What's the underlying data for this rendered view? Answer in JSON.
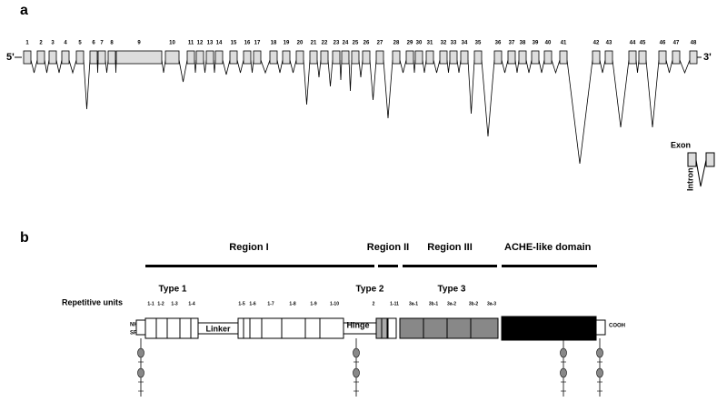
{
  "panel_a": {
    "label": "a",
    "five_prime": "5'",
    "three_prime": "3'",
    "exons": [
      "1",
      "2",
      "3",
      "4",
      "5",
      "6",
      "7",
      "8",
      "9",
      "10",
      "11",
      "12",
      "13",
      "14",
      "15",
      "16",
      "17",
      "18",
      "19",
      "20",
      "21",
      "22",
      "23",
      "24",
      "25",
      "26",
      "27",
      "28",
      "29",
      "30",
      "31",
      "32",
      "33",
      "34",
      "35",
      "36",
      "37",
      "38",
      "39",
      "40",
      "41",
      "42",
      "43",
      "44",
      "45",
      "46",
      "47",
      "48"
    ],
    "legend": {
      "exon": "Exon",
      "intron": "Intron"
    }
  },
  "panel_b": {
    "label": "b",
    "regions": [
      "Region I",
      "Region II",
      "Region III",
      "ACHE-like domain"
    ],
    "types": [
      "Type 1",
      "Type 2",
      "Type 3"
    ],
    "repetitive_units_label": "Repetitive units",
    "units": [
      "1-1",
      "1-2",
      "1-3",
      "1-4",
      "1-5",
      "1-6",
      "1-7",
      "1-8",
      "1-9",
      "1-10",
      "2",
      "1-11",
      "3a-1",
      "3b-1",
      "3a-2",
      "3b-2",
      "3a-3"
    ],
    "linker": "Linker",
    "hinge": "Hinge",
    "n_terminus": "NH2",
    "signal_peptide": "SP",
    "c_terminus": "COOH"
  }
}
